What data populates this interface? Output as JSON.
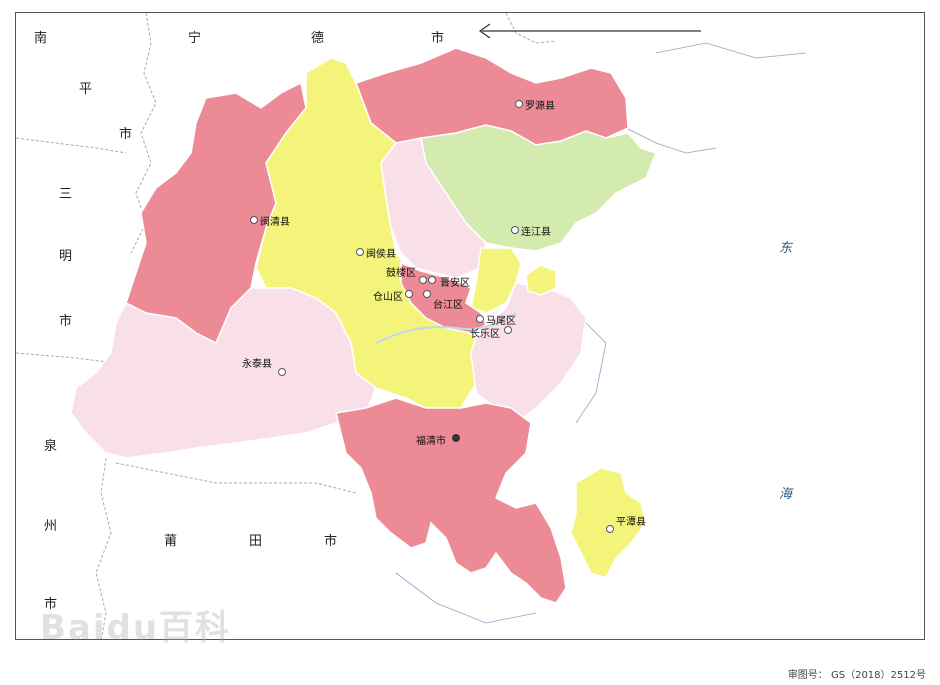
{
  "colors": {
    "pink": "#ec8a96",
    "yellow": "#f4f47a",
    "light_pink": "#f9e0e8",
    "green": "#d4ebb0",
    "outline": "#ffffff",
    "neighbor_border": "#999999"
  },
  "map": {
    "neighbors": {
      "nanping": [
        "南",
        "平",
        "市"
      ],
      "ningde": [
        "宁",
        "德",
        "市"
      ],
      "sanming": [
        "三",
        "明",
        "市"
      ],
      "quanzhou": [
        "泉",
        "州",
        "市"
      ],
      "putian": [
        "莆",
        "田",
        "市"
      ]
    },
    "sea": [
      "东",
      "海"
    ],
    "places": {
      "luoyuan": "罗源县",
      "minqing": "闽清县",
      "lianjiang": "连江县",
      "minhou": "闽侯县",
      "gulou": "鼓楼区",
      "jinan": "晋安区",
      "cangshan": "仓山区",
      "taijiang": "台江区",
      "mawei": "马尾区",
      "changle": "长乐区",
      "yongtai": "永泰县",
      "fuqing": "福清市",
      "pingtan": "平潭县"
    }
  },
  "approval_number": "审图号： GS（2018）2512号",
  "watermark": "Baidu百科"
}
